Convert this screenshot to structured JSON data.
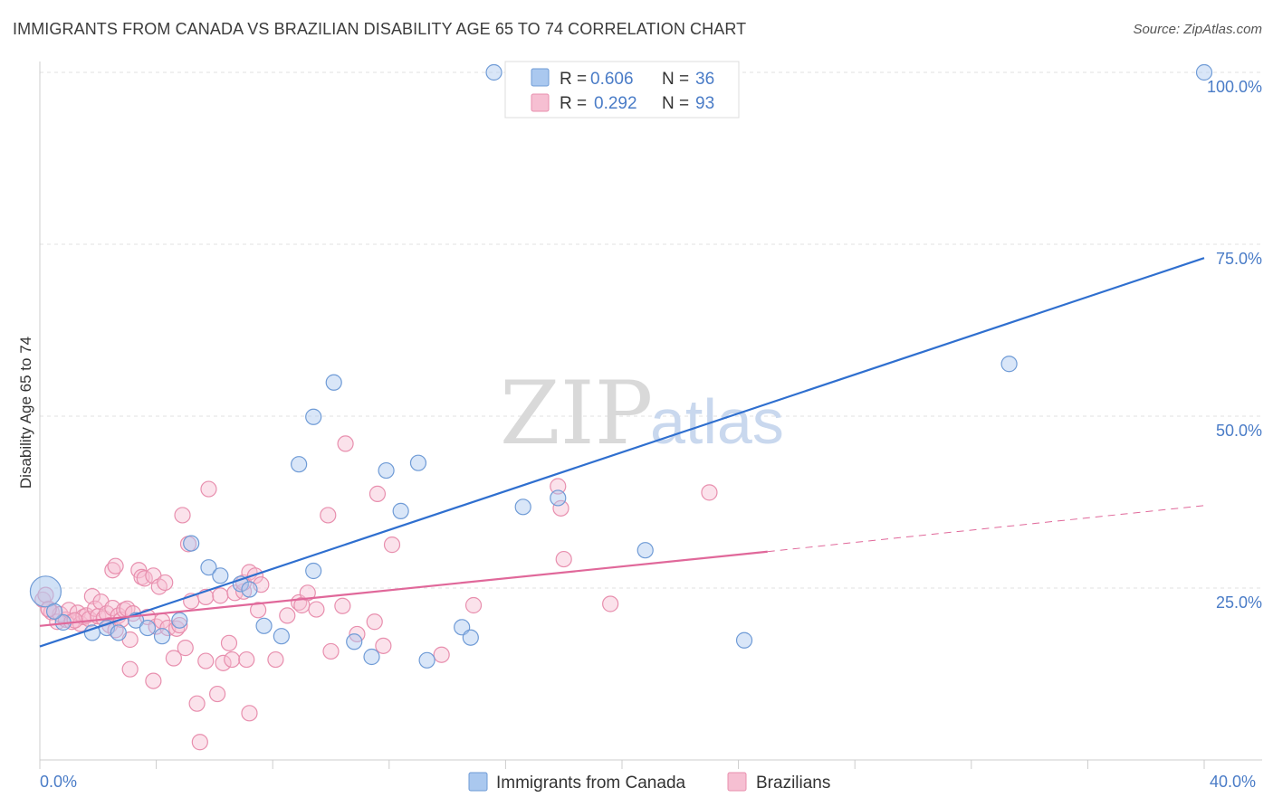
{
  "header": {
    "title": "IMMIGRANTS FROM CANADA VS BRAZILIAN DISABILITY AGE 65 TO 74 CORRELATION CHART",
    "source": "Source: ZipAtlas.com"
  },
  "watermark": {
    "zip": "ZIP",
    "atlas": "atlas"
  },
  "colors": {
    "canada_fill": "#aac8ef",
    "canada_stroke": "#6f9bd6",
    "canada_line": "#2f6fcf",
    "brazil_fill": "#f6bfd2",
    "brazil_stroke": "#e88fae",
    "brazil_line": "#e0689a",
    "tick_text": "#4a7cc7",
    "grid": "#e2e2e2"
  },
  "legend": {
    "rows": [
      {
        "r_label": "R =",
        "r_value": "0.606",
        "n_label": "N =",
        "n_value": "36"
      },
      {
        "r_label": "R =",
        "r_value": "0.292",
        "n_label": "N =",
        "n_value": "93"
      }
    ],
    "bottom": [
      "Immigrants from Canada",
      "Brazilians"
    ]
  },
  "chart_data": {
    "type": "scatter",
    "title": "IMMIGRANTS FROM CANADA VS BRAZILIAN DISABILITY AGE 65 TO 74 CORRELATION CHART",
    "xlabel": "",
    "ylabel": "Disability Age 65 to 74",
    "xlim": [
      0,
      40
    ],
    "ylim": [
      0,
      100
    ],
    "x_tick_labels": [
      "0.0%",
      "40.0%"
    ],
    "y_ticks": [
      25,
      50,
      75,
      100
    ],
    "y_tick_labels": [
      "25.0%",
      "50.0%",
      "75.0%",
      "100.0%"
    ],
    "grid": true,
    "legend_position": "top-center",
    "series": [
      {
        "name": "Immigrants from Canada",
        "R": 0.606,
        "N": 36,
        "trend": {
          "x": [
            0,
            40
          ],
          "y": [
            16.5,
            73.0
          ]
        },
        "points": [
          {
            "x": 0.2,
            "y": 24.5,
            "big": true
          },
          {
            "x": 0.8,
            "y": 20.0
          },
          {
            "x": 1.8,
            "y": 18.5
          },
          {
            "x": 2.3,
            "y": 19.2
          },
          {
            "x": 2.7,
            "y": 18.5
          },
          {
            "x": 3.3,
            "y": 20.3
          },
          {
            "x": 3.7,
            "y": 19.2
          },
          {
            "x": 4.2,
            "y": 18.0
          },
          {
            "x": 4.8,
            "y": 20.3
          },
          {
            "x": 5.2,
            "y": 31.5
          },
          {
            "x": 5.8,
            "y": 28.0
          },
          {
            "x": 6.2,
            "y": 26.8
          },
          {
            "x": 6.9,
            "y": 25.6
          },
          {
            "x": 7.2,
            "y": 24.8
          },
          {
            "x": 7.7,
            "y": 19.5
          },
          {
            "x": 8.3,
            "y": 18.0
          },
          {
            "x": 8.9,
            "y": 43.0
          },
          {
            "x": 9.4,
            "y": 27.5
          },
          {
            "x": 9.4,
            "y": 49.9
          },
          {
            "x": 10.1,
            "y": 54.9
          },
          {
            "x": 10.8,
            "y": 17.2
          },
          {
            "x": 11.4,
            "y": 15.0
          },
          {
            "x": 11.9,
            "y": 42.1
          },
          {
            "x": 12.4,
            "y": 36.2
          },
          {
            "x": 13.0,
            "y": 43.2
          },
          {
            "x": 13.3,
            "y": 14.5
          },
          {
            "x": 14.5,
            "y": 19.3
          },
          {
            "x": 14.8,
            "y": 17.8
          },
          {
            "x": 15.6,
            "y": 100.0
          },
          {
            "x": 16.6,
            "y": 36.8
          },
          {
            "x": 17.8,
            "y": 38.1
          },
          {
            "x": 20.8,
            "y": 30.5
          },
          {
            "x": 24.2,
            "y": 17.4
          },
          {
            "x": 33.3,
            "y": 57.6
          },
          {
            "x": 40.0,
            "y": 100.0
          },
          {
            "x": 0.5,
            "y": 21.6
          }
        ]
      },
      {
        "name": "Brazilians",
        "R": 0.292,
        "N": 93,
        "trend": {
          "x": [
            0,
            25.0
          ],
          "y": [
            19.5,
            30.3
          ]
        },
        "trend_dashed": {
          "x": [
            25.0,
            40
          ],
          "y": [
            30.3,
            37.0
          ]
        },
        "points": [
          {
            "x": 0.1,
            "y": 23.3
          },
          {
            "x": 0.3,
            "y": 22.0
          },
          {
            "x": 0.4,
            "y": 21.5
          },
          {
            "x": 0.6,
            "y": 20.1
          },
          {
            "x": 0.7,
            "y": 21.2
          },
          {
            "x": 0.9,
            "y": 20.4
          },
          {
            "x": 1.0,
            "y": 21.8
          },
          {
            "x": 1.1,
            "y": 20.1
          },
          {
            "x": 1.3,
            "y": 21.4
          },
          {
            "x": 1.4,
            "y": 19.8
          },
          {
            "x": 1.5,
            "y": 20.8
          },
          {
            "x": 1.6,
            "y": 21.0
          },
          {
            "x": 1.7,
            "y": 20.5
          },
          {
            "x": 1.8,
            "y": 23.8
          },
          {
            "x": 1.9,
            "y": 22.0
          },
          {
            "x": 2.0,
            "y": 20.9
          },
          {
            "x": 2.1,
            "y": 23.0
          },
          {
            "x": 2.2,
            "y": 20.6
          },
          {
            "x": 2.3,
            "y": 21.3
          },
          {
            "x": 2.4,
            "y": 19.6
          },
          {
            "x": 2.5,
            "y": 22.1
          },
          {
            "x": 2.5,
            "y": 27.6
          },
          {
            "x": 2.6,
            "y": 18.9
          },
          {
            "x": 2.6,
            "y": 28.2
          },
          {
            "x": 2.7,
            "y": 21.0
          },
          {
            "x": 2.8,
            "y": 20.4
          },
          {
            "x": 2.9,
            "y": 21.8
          },
          {
            "x": 3.0,
            "y": 22.0
          },
          {
            "x": 3.1,
            "y": 17.5
          },
          {
            "x": 3.1,
            "y": 13.2
          },
          {
            "x": 3.2,
            "y": 21.3
          },
          {
            "x": 3.4,
            "y": 27.6
          },
          {
            "x": 3.5,
            "y": 26.6
          },
          {
            "x": 3.6,
            "y": 26.4
          },
          {
            "x": 3.7,
            "y": 20.8
          },
          {
            "x": 3.9,
            "y": 26.8
          },
          {
            "x": 3.9,
            "y": 11.5
          },
          {
            "x": 4.0,
            "y": 19.4
          },
          {
            "x": 4.1,
            "y": 25.2
          },
          {
            "x": 4.2,
            "y": 20.2
          },
          {
            "x": 4.3,
            "y": 25.8
          },
          {
            "x": 4.4,
            "y": 19.2
          },
          {
            "x": 4.6,
            "y": 14.8
          },
          {
            "x": 4.7,
            "y": 19.1
          },
          {
            "x": 4.8,
            "y": 19.6
          },
          {
            "x": 4.9,
            "y": 35.6
          },
          {
            "x": 5.0,
            "y": 16.3
          },
          {
            "x": 5.1,
            "y": 31.4
          },
          {
            "x": 5.2,
            "y": 23.1
          },
          {
            "x": 5.4,
            "y": 8.2
          },
          {
            "x": 5.5,
            "y": 2.6
          },
          {
            "x": 5.7,
            "y": 23.7
          },
          {
            "x": 5.7,
            "y": 14.4
          },
          {
            "x": 5.8,
            "y": 39.4
          },
          {
            "x": 6.1,
            "y": 9.6
          },
          {
            "x": 6.2,
            "y": 23.9
          },
          {
            "x": 6.3,
            "y": 14.1
          },
          {
            "x": 6.5,
            "y": 17.0
          },
          {
            "x": 6.6,
            "y": 14.6
          },
          {
            "x": 6.7,
            "y": 24.3
          },
          {
            "x": 7.0,
            "y": 24.5
          },
          {
            "x": 7.0,
            "y": 25.8
          },
          {
            "x": 7.1,
            "y": 14.6
          },
          {
            "x": 7.2,
            "y": 6.8
          },
          {
            "x": 7.2,
            "y": 27.3
          },
          {
            "x": 7.4,
            "y": 26.8
          },
          {
            "x": 7.5,
            "y": 21.8
          },
          {
            "x": 7.6,
            "y": 25.5
          },
          {
            "x": 8.1,
            "y": 14.6
          },
          {
            "x": 8.5,
            "y": 21.0
          },
          {
            "x": 8.9,
            "y": 22.9
          },
          {
            "x": 9.0,
            "y": 22.5
          },
          {
            "x": 9.2,
            "y": 24.3
          },
          {
            "x": 9.5,
            "y": 21.9
          },
          {
            "x": 9.9,
            "y": 35.6
          },
          {
            "x": 10.0,
            "y": 15.8
          },
          {
            "x": 10.4,
            "y": 22.4
          },
          {
            "x": 10.5,
            "y": 46.0
          },
          {
            "x": 10.9,
            "y": 18.3
          },
          {
            "x": 11.5,
            "y": 20.1
          },
          {
            "x": 11.6,
            "y": 38.7
          },
          {
            "x": 11.8,
            "y": 16.6
          },
          {
            "x": 12.1,
            "y": 31.3
          },
          {
            "x": 13.8,
            "y": 15.3
          },
          {
            "x": 14.9,
            "y": 22.5
          },
          {
            "x": 17.8,
            "y": 39.8
          },
          {
            "x": 17.9,
            "y": 36.6
          },
          {
            "x": 18.0,
            "y": 29.2
          },
          {
            "x": 19.6,
            "y": 22.7
          },
          {
            "x": 23.0,
            "y": 38.9
          },
          {
            "x": 0.2,
            "y": 24.0
          },
          {
            "x": 0.3,
            "y": 21.9
          },
          {
            "x": 1.2,
            "y": 20.3
          }
        ]
      }
    ]
  }
}
